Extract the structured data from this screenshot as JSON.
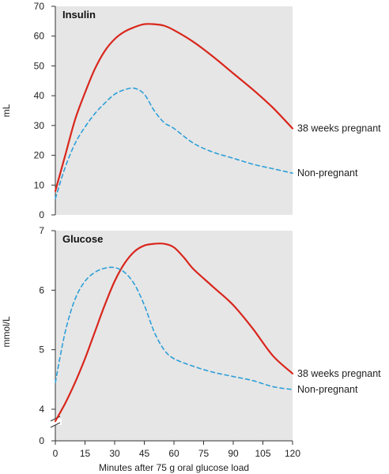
{
  "chart_data": [
    {
      "type": "line",
      "title": "Insulin",
      "xlabel": "",
      "ylabel": "mL",
      "xlim": [
        0,
        120
      ],
      "ylim": [
        0,
        70
      ],
      "yticks": [
        0,
        10,
        20,
        30,
        40,
        50,
        60,
        70
      ],
      "grid": false,
      "series": [
        {
          "name": "38 weeks pregnant",
          "color": "#d9261c",
          "dash": "solid",
          "x": [
            0,
            5,
            10,
            15,
            20,
            25,
            30,
            35,
            40,
            45,
            50,
            55,
            60,
            70,
            80,
            90,
            100,
            110,
            120
          ],
          "y": [
            8,
            20,
            32,
            41,
            49,
            55,
            59,
            61.5,
            63,
            64,
            64,
            63.5,
            62,
            58,
            53,
            47.5,
            42,
            36,
            29
          ]
        },
        {
          "name": "Non-pregnant",
          "color": "#2d9fd8",
          "dash": "dashed",
          "x": [
            0,
            5,
            10,
            15,
            20,
            25,
            30,
            35,
            40,
            45,
            50,
            55,
            60,
            70,
            80,
            90,
            100,
            110,
            120
          ],
          "y": [
            5.5,
            16,
            24,
            29.5,
            34,
            37.5,
            40.5,
            42,
            42.5,
            40.5,
            35,
            31,
            29,
            24,
            21,
            19,
            17,
            15.5,
            14
          ]
        }
      ]
    },
    {
      "type": "line",
      "title": "Glucose",
      "xlabel": "Minutes after 75 g oral glucose load",
      "ylabel": "mmol/L",
      "xlim": [
        0,
        120
      ],
      "ylim": [
        0,
        7
      ],
      "y_axis_break": true,
      "yticks": [
        0,
        4,
        5,
        6,
        7
      ],
      "xticks": [
        0,
        15,
        30,
        45,
        60,
        75,
        90,
        105,
        120
      ],
      "grid": false,
      "series": [
        {
          "name": "38 weeks pregnant",
          "color": "#d9261c",
          "dash": "solid",
          "x": [
            0,
            5,
            10,
            15,
            20,
            25,
            30,
            35,
            40,
            45,
            50,
            55,
            60,
            65,
            70,
            80,
            90,
            100,
            110,
            120
          ],
          "y": [
            3.8,
            4.1,
            4.45,
            4.85,
            5.3,
            5.75,
            6.15,
            6.45,
            6.65,
            6.75,
            6.78,
            6.78,
            6.72,
            6.55,
            6.35,
            6.05,
            5.75,
            5.35,
            4.9,
            4.6
          ]
        },
        {
          "name": "Non-pregnant",
          "color": "#2d9fd8",
          "dash": "dashed",
          "x": [
            0,
            5,
            10,
            15,
            20,
            25,
            30,
            35,
            40,
            45,
            50,
            55,
            60,
            70,
            80,
            90,
            100,
            110,
            120
          ],
          "y": [
            4.45,
            5.3,
            5.85,
            6.15,
            6.3,
            6.37,
            6.38,
            6.3,
            6.1,
            5.75,
            5.3,
            5.0,
            4.85,
            4.72,
            4.62,
            4.55,
            4.48,
            4.38,
            4.33
          ]
        }
      ]
    }
  ]
}
